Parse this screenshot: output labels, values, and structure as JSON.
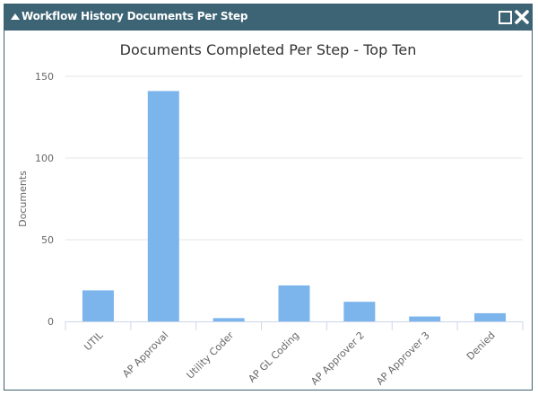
{
  "window": {
    "title": "Workflow History Documents Per Step",
    "icons": [
      "collapse-icon",
      "maximize-icon",
      "close-icon"
    ]
  },
  "chart_data": {
    "type": "bar",
    "title": "Documents Completed Per Step - Top Ten",
    "xlabel": "",
    "ylabel": "Documents",
    "ylim": [
      0,
      150
    ],
    "yticks": [
      0,
      50,
      100,
      150
    ],
    "grid": true,
    "legend": "none",
    "categories": [
      "UTIL",
      "AP Approval",
      "Utility Coder",
      "AP GL Coding",
      "AP Approver 2",
      "AP Approver 3",
      "Denied"
    ],
    "values": [
      19,
      141,
      2,
      22,
      12,
      3,
      5
    ],
    "colors": {
      "bar": "#7cb5ec",
      "grid": "#e6e6e6",
      "axis": "#ccd6eb",
      "text": "#666666",
      "header": "#3d6475"
    }
  }
}
